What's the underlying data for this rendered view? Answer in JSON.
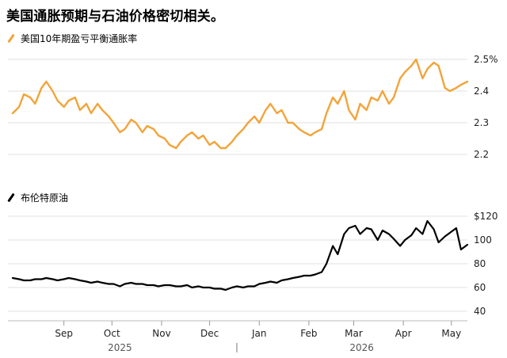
{
  "title": "美国通胀预期与石油价格密切相关。",
  "chart_data": [
    {
      "type": "line",
      "series": [
        {
          "name": "美国10年期盈亏平衡通胀率",
          "color": "#F2A43A"
        }
      ],
      "y_ticks": [
        "2.5%",
        "2.4",
        "2.3",
        "2.2"
      ],
      "ylim": [
        2.2,
        2.5
      ],
      "x": [
        "2025-08-14",
        "2025-08-18",
        "2025-08-21",
        "2025-08-25",
        "2025-08-28",
        "2025-09-01",
        "2025-09-04",
        "2025-09-08",
        "2025-09-11",
        "2025-09-15",
        "2025-09-18",
        "2025-09-22",
        "2025-09-25",
        "2025-09-29",
        "2025-10-02",
        "2025-10-06",
        "2025-10-09",
        "2025-10-13",
        "2025-10-16",
        "2025-10-20",
        "2025-10-23",
        "2025-10-27",
        "2025-10-30",
        "2025-11-03",
        "2025-11-06",
        "2025-11-10",
        "2025-11-13",
        "2025-11-17",
        "2025-11-20",
        "2025-11-24",
        "2025-11-27",
        "2025-12-01",
        "2025-12-04",
        "2025-12-08",
        "2025-12-11",
        "2025-12-15",
        "2025-12-18",
        "2025-12-22",
        "2025-12-25",
        "2025-12-29",
        "2026-01-01",
        "2026-01-05",
        "2026-01-08",
        "2026-01-12",
        "2026-01-15",
        "2026-01-19",
        "2026-01-22",
        "2026-01-26",
        "2026-01-29",
        "2026-02-02",
        "2026-02-05",
        "2026-02-09",
        "2026-02-12",
        "2026-02-16",
        "2026-02-19",
        "2026-02-23",
        "2026-02-26",
        "2026-03-02",
        "2026-03-05",
        "2026-03-09",
        "2026-03-12",
        "2026-03-16",
        "2026-03-19",
        "2026-03-23",
        "2026-03-26",
        "2026-03-30",
        "2026-04-02",
        "2026-04-06",
        "2026-04-09",
        "2026-04-13",
        "2026-04-16",
        "2026-04-20",
        "2026-04-23",
        "2026-04-27",
        "2026-04-30",
        "2026-05-04",
        "2026-05-07",
        "2026-05-11",
        "2026-05-14",
        "2026-05-18",
        "2026-05-21",
        "2026-05-25"
      ],
      "y": [
        2.33,
        2.35,
        2.39,
        2.38,
        2.36,
        2.41,
        2.43,
        2.4,
        2.37,
        2.35,
        2.37,
        2.38,
        2.34,
        2.36,
        2.33,
        2.36,
        2.34,
        2.32,
        2.3,
        2.27,
        2.28,
        2.31,
        2.3,
        2.27,
        2.29,
        2.28,
        2.26,
        2.25,
        2.23,
        2.22,
        2.24,
        2.26,
        2.27,
        2.25,
        2.26,
        2.23,
        2.24,
        2.22,
        2.22,
        2.24,
        2.26,
        2.28,
        2.3,
        2.32,
        2.3,
        2.34,
        2.36,
        2.33,
        2.34,
        2.3,
        2.3,
        2.28,
        2.27,
        2.26,
        2.27,
        2.28,
        2.33,
        2.38,
        2.36,
        2.4,
        2.34,
        2.31,
        2.36,
        2.34,
        2.38,
        2.37,
        2.4,
        2.36,
        2.38,
        2.44,
        2.46,
        2.48,
        2.5,
        2.44,
        2.47,
        2.49,
        2.48,
        2.41,
        2.4,
        2.41,
        2.42,
        2.43
      ]
    },
    {
      "type": "line",
      "series": [
        {
          "name": "布伦特原油",
          "color": "#000000"
        }
      ],
      "y_ticks": [
        "$120",
        "100",
        "80",
        "60",
        "40"
      ],
      "ylim": [
        40,
        120
      ],
      "x_ticks": [
        "Sep",
        "Oct",
        "Nov",
        "Dec",
        "Jan",
        "Feb",
        "Mar",
        "Apr",
        "May"
      ],
      "x_years": [
        "2025",
        "2026"
      ],
      "x": [
        "2025-08-14",
        "2025-08-18",
        "2025-08-21",
        "2025-08-25",
        "2025-08-28",
        "2025-09-01",
        "2025-09-04",
        "2025-09-08",
        "2025-09-11",
        "2025-09-15",
        "2025-09-18",
        "2025-09-22",
        "2025-09-25",
        "2025-09-29",
        "2025-10-02",
        "2025-10-06",
        "2025-10-09",
        "2025-10-13",
        "2025-10-16",
        "2025-10-20",
        "2025-10-23",
        "2025-10-27",
        "2025-10-30",
        "2025-11-03",
        "2025-11-06",
        "2025-11-10",
        "2025-11-13",
        "2025-11-17",
        "2025-11-20",
        "2025-11-24",
        "2025-11-27",
        "2025-12-01",
        "2025-12-04",
        "2025-12-08",
        "2025-12-11",
        "2025-12-15",
        "2025-12-18",
        "2025-12-22",
        "2025-12-25",
        "2025-12-29",
        "2026-01-01",
        "2026-01-05",
        "2026-01-08",
        "2026-01-12",
        "2026-01-15",
        "2026-01-19",
        "2026-01-22",
        "2026-01-26",
        "2026-01-29",
        "2026-02-02",
        "2026-02-05",
        "2026-02-09",
        "2026-02-12",
        "2026-02-16",
        "2026-02-19",
        "2026-02-23",
        "2026-02-26",
        "2026-03-02",
        "2026-03-05",
        "2026-03-09",
        "2026-03-12",
        "2026-03-16",
        "2026-03-19",
        "2026-03-23",
        "2026-03-26",
        "2026-03-30",
        "2026-04-02",
        "2026-04-06",
        "2026-04-09",
        "2026-04-13",
        "2026-04-16",
        "2026-04-20",
        "2026-04-23",
        "2026-04-27",
        "2026-04-30",
        "2026-05-04",
        "2026-05-07",
        "2026-05-11",
        "2026-05-14",
        "2026-05-18",
        "2026-05-21",
        "2026-05-25"
      ],
      "y": [
        68,
        67,
        66,
        66,
        67,
        67,
        68,
        67,
        66,
        67,
        68,
        67,
        66,
        65,
        64,
        65,
        64,
        63,
        63,
        61,
        63,
        64,
        63,
        63,
        62,
        62,
        61,
        62,
        62,
        61,
        61,
        62,
        60,
        61,
        60,
        60,
        59,
        59,
        58,
        60,
        61,
        60,
        61,
        61,
        63,
        64,
        65,
        64,
        66,
        67,
        68,
        69,
        70,
        70,
        71,
        73,
        80,
        95,
        88,
        105,
        110,
        112,
        105,
        110,
        109,
        100,
        108,
        105,
        101,
        95,
        100,
        104,
        110,
        105,
        116,
        109,
        98,
        103,
        106,
        110,
        92,
        96
      ]
    }
  ]
}
